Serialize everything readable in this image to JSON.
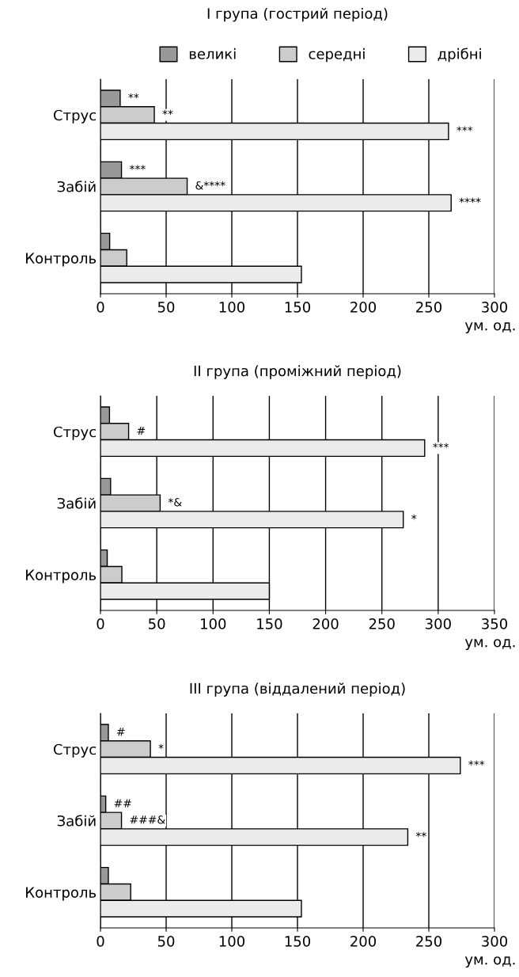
{
  "chart_data": [
    {
      "type": "bar",
      "orientation": "horizontal",
      "title": "I група (гострий період)",
      "xlabel": "ум. од.",
      "categories": [
        "Струс",
        "Забій",
        "Контроль"
      ],
      "xlim": [
        0,
        300
      ],
      "xticks": [
        0,
        50,
        100,
        150,
        200,
        250,
        300
      ],
      "grid": "x",
      "legend": "top",
      "series": [
        {
          "name": "великі",
          "color": "#999999",
          "values": [
            15,
            16,
            7
          ],
          "value_labels": [
            "**",
            "***",
            null
          ]
        },
        {
          "name": "середні",
          "color": "#cccccc",
          "values": [
            41,
            66,
            20
          ],
          "value_labels": [
            "**",
            "&****",
            null
          ]
        },
        {
          "name": "дрібні",
          "color": "#ebebeb",
          "values": [
            265,
            267,
            153
          ],
          "value_labels": [
            "***",
            "****",
            null
          ]
        }
      ]
    },
    {
      "type": "bar",
      "orientation": "horizontal",
      "title": "II група (проміжний період)",
      "xlabel": "ум. од.",
      "categories": [
        "Струс",
        "Забій",
        "Контроль"
      ],
      "xlim": [
        0,
        350
      ],
      "xticks": [
        0,
        50,
        100,
        150,
        200,
        250,
        300,
        350
      ],
      "grid": "x",
      "series": [
        {
          "color": "#999999",
          "values": [
            8,
            9,
            6
          ]
        },
        {
          "color": "#cccccc",
          "values": [
            25,
            53,
            19
          ],
          "value_labels": [
            "#",
            "*&",
            null
          ]
        },
        {
          "color": "#ebebeb",
          "values": [
            288,
            269,
            150
          ],
          "value_labels": [
            "***",
            "*",
            null
          ]
        }
      ]
    },
    {
      "type": "bar",
      "orientation": "horizontal",
      "title": "III група (віддалений період)",
      "xlabel": "ум. од.",
      "categories": [
        "Струс",
        "Забій",
        "Контроль"
      ],
      "xlim": [
        0,
        300
      ],
      "xticks": [
        0,
        50,
        100,
        150,
        200,
        250,
        300
      ],
      "grid": "x",
      "series": [
        {
          "color": "#999999",
          "values": [
            6,
            4,
            6
          ],
          "value_labels": [
            "#",
            "##",
            null
          ]
        },
        {
          "color": "#cccccc",
          "values": [
            38,
            16,
            23
          ],
          "value_labels": [
            "*",
            "###&",
            null
          ]
        },
        {
          "color": "#ebebeb",
          "values": [
            274,
            234,
            153
          ],
          "value_labels": [
            "***",
            "**",
            null
          ]
        }
      ]
    }
  ]
}
